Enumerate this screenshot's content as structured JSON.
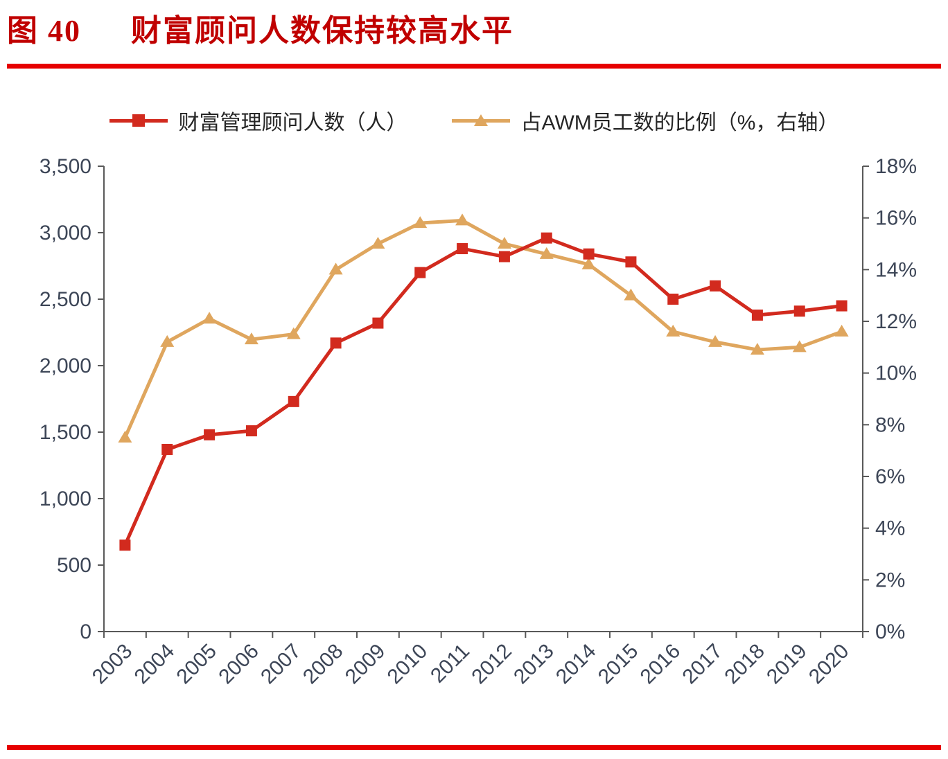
{
  "header": {
    "figure_label": "图 40",
    "title": "财富顾问人数保持较高水平"
  },
  "colors": {
    "title_red": "#c00000",
    "rule_red": "#e60000",
    "series_red": "#d22a1e",
    "series_orange": "#dfa65e",
    "axis_text": "#3d4657",
    "axis_line": "#595959"
  },
  "chart_data": {
    "type": "line",
    "title": "财富顾问人数保持较高水平",
    "legend_position": "top",
    "grid": false,
    "categories": [
      "2003",
      "2004",
      "2005",
      "2006",
      "2007",
      "2008",
      "2009",
      "2010",
      "2011",
      "2012",
      "2013",
      "2014",
      "2015",
      "2016",
      "2017",
      "2018",
      "2019",
      "2020"
    ],
    "series": [
      {
        "name": "财富管理顾问人数（人）",
        "axis": "left",
        "color": "#d22a1e",
        "marker": "square",
        "values": [
          650,
          1370,
          1480,
          1510,
          1730,
          2170,
          2320,
          2700,
          2880,
          2820,
          2960,
          2840,
          2780,
          2500,
          2600,
          2380,
          2410,
          2450
        ]
      },
      {
        "name": "占AWM员工数的比例（%，右轴）",
        "axis": "right",
        "color": "#dfa65e",
        "marker": "triangle-up",
        "values": [
          7.5,
          11.2,
          12.1,
          11.3,
          11.5,
          14.0,
          15.0,
          15.8,
          15.9,
          15.0,
          14.6,
          14.2,
          13.0,
          11.6,
          11.2,
          10.9,
          11.0,
          11.6
        ]
      }
    ],
    "left_axis": {
      "min": 0,
      "max": 3500,
      "step": 500,
      "tick_labels": [
        "0",
        "500",
        "1,000",
        "1,500",
        "2,000",
        "2,500",
        "3,000",
        "3,500"
      ]
    },
    "right_axis": {
      "min": 0,
      "max": 18,
      "step": 2,
      "suffix": "%",
      "tick_labels": [
        "0%",
        "2%",
        "4%",
        "6%",
        "8%",
        "10%",
        "12%",
        "14%",
        "16%",
        "18%"
      ]
    }
  }
}
